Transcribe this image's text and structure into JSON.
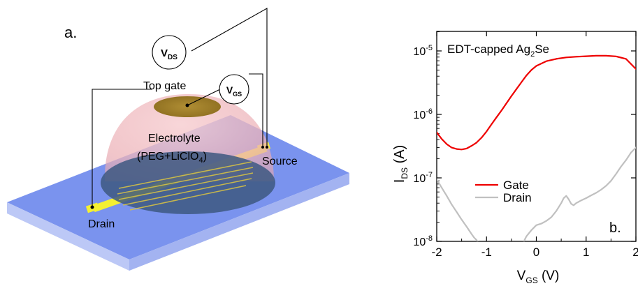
{
  "figure_a": {
    "panel_label": "a.",
    "vds_label": {
      "main": "V",
      "sub": "DS"
    },
    "vgs_label": {
      "main": "V",
      "sub": "GS"
    },
    "top_gate_label": "Top gate",
    "electrolyte_label": "Electrolyte",
    "electrolyte_formula": {
      "pre": "(PEG+LiClO",
      "sub": "4",
      "post": ")"
    },
    "source_label": "Source",
    "drain_label": "Drain",
    "colors": {
      "substrate_top": "#7a93ee",
      "substrate_front": "#bcc8f6",
      "substrate_side": "#a3b3f1",
      "electrolyte": "#f1b9bd",
      "gate": "#a3812a",
      "electrode": "#f4f032",
      "film": "#3d5880"
    }
  },
  "chart_data": {
    "type": "line",
    "panel_label": "b.",
    "title": {
      "pre": "EDT-capped Ag",
      "sub": "2",
      "post": "Se"
    },
    "xlabel": {
      "main": "V",
      "sub": "GS",
      "post": " (V)"
    },
    "ylabel": {
      "main": "I",
      "sub": "DS",
      "post": " (A)"
    },
    "xlim": [
      -2,
      2
    ],
    "ylim": [
      1e-08,
      2e-05
    ],
    "yscale": "log",
    "x_ticks": [
      -2,
      -1,
      0,
      1,
      2
    ],
    "x_tick_labels": [
      "-2",
      "-1",
      "0",
      "1",
      "2"
    ],
    "y_ticks": [
      1e-08,
      1e-07,
      1e-06,
      1e-05
    ],
    "y_tick_labels": [
      {
        "base": "10",
        "exp": "-8"
      },
      {
        "base": "10",
        "exp": "-7"
      },
      {
        "base": "10",
        "exp": "-6"
      },
      {
        "base": "10",
        "exp": "-5"
      }
    ],
    "legend_position": "center-left",
    "series": [
      {
        "name": "Gate",
        "color": "#ee0000",
        "x": [
          -2.0,
          -1.9,
          -1.8,
          -1.7,
          -1.6,
          -1.5,
          -1.4,
          -1.3,
          -1.2,
          -1.1,
          -1.0,
          -0.9,
          -0.8,
          -0.7,
          -0.6,
          -0.5,
          -0.4,
          -0.3,
          -0.2,
          -0.1,
          0.0,
          0.2,
          0.4,
          0.6,
          0.8,
          1.0,
          1.2,
          1.4,
          1.6,
          1.8,
          2.0
        ],
        "y": [
          5.2e-07,
          4.1e-07,
          3.4e-07,
          3e-07,
          2.85e-07,
          2.8e-07,
          2.9e-07,
          3.2e-07,
          3.6e-07,
          4.3e-07,
          5.4e-07,
          7e-07,
          9e-07,
          1.15e-06,
          1.5e-06,
          1.95e-06,
          2.5e-06,
          3.2e-06,
          4.1e-06,
          5e-06,
          5.8e-06,
          6.9e-06,
          7.5e-06,
          7.9e-06,
          8.1e-06,
          8.25e-06,
          8.4e-06,
          8.4e-06,
          8.2e-06,
          7.5e-06,
          5.2e-06
        ]
      },
      {
        "name": "Drain",
        "color": "#c0c0c0",
        "x": [
          -2.0,
          -1.9,
          -1.8,
          -1.7,
          -1.6,
          -1.5,
          -1.4,
          -1.3,
          -1.25,
          -1.2,
          -1.18,
          -0.25,
          -0.2,
          -0.1,
          0.0,
          0.1,
          0.2,
          0.3,
          0.4,
          0.5,
          0.55,
          0.6,
          0.65,
          0.7,
          0.75,
          0.8,
          0.9,
          1.0,
          1.1,
          1.2,
          1.3,
          1.4,
          1.5,
          1.6,
          1.7,
          1.8,
          1.9,
          2.0
        ],
        "y": [
          9.5e-08,
          7e-08,
          5.2e-08,
          3.8e-08,
          2.9e-08,
          2.2e-08,
          1.7e-08,
          1.3e-08,
          1.15e-08,
          1.05e-08,
          1e-08,
          1e-08,
          1.2e-08,
          1.5e-08,
          1.8e-08,
          1.9e-08,
          2.1e-08,
          2.4e-08,
          3e-08,
          4e-08,
          4.8e-08,
          5.2e-08,
          4.6e-08,
          3.9e-08,
          3.7e-08,
          4e-08,
          4.4e-08,
          4.8e-08,
          5.3e-08,
          5.8e-08,
          6.5e-08,
          7.5e-08,
          9e-08,
          1.15e-07,
          1.5e-07,
          1.9e-07,
          2.5e-07,
          3e-07
        ]
      }
    ]
  }
}
